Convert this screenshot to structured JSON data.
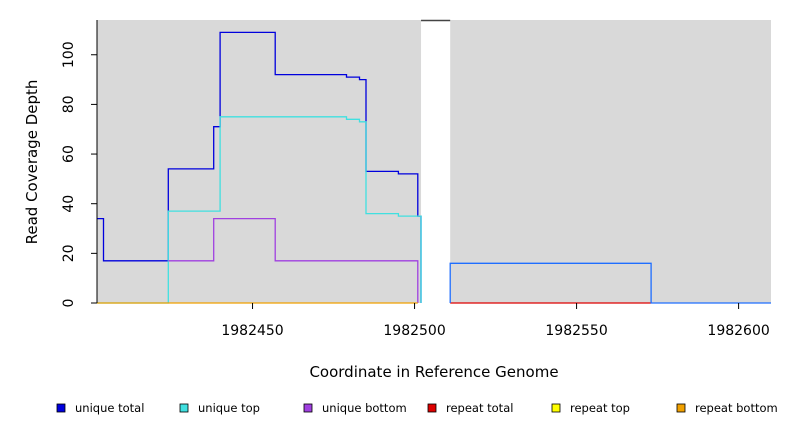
{
  "chart_data": {
    "type": "line",
    "xlabel": "Coordinate in Reference Genome",
    "ylabel": "Read Coverage Depth",
    "xlim": [
      1982402,
      1982610
    ],
    "ylim": [
      0,
      114
    ],
    "x_ticks": [
      {
        "value": 1982450,
        "label": "1982450"
      },
      {
        "value": 1982500,
        "label": "1982500"
      },
      {
        "value": 1982550,
        "label": "1982550"
      },
      {
        "value": 1982600,
        "label": "1982600"
      }
    ],
    "y_ticks": [
      {
        "value": 0,
        "label": "0"
      },
      {
        "value": 20,
        "label": "20"
      },
      {
        "value": 40,
        "label": "40"
      },
      {
        "value": 60,
        "label": "60"
      },
      {
        "value": 80,
        "label": "80"
      },
      {
        "value": 100,
        "label": "100"
      }
    ],
    "gap_region": [
      1982502,
      1982511
    ],
    "legend_position": "bottom",
    "series": [
      {
        "name": "unique total",
        "color": "#0000dd",
        "points": [
          [
            1982402,
            34
          ],
          [
            1982404,
            34
          ],
          [
            1982404,
            17
          ],
          [
            1982424,
            17
          ],
          [
            1982424,
            54
          ],
          [
            1982438,
            54
          ],
          [
            1982438,
            71
          ],
          [
            1982440,
            71
          ],
          [
            1982440,
            109
          ],
          [
            1982457,
            109
          ],
          [
            1982457,
            92
          ],
          [
            1982479,
            92
          ],
          [
            1982479,
            91
          ],
          [
            1982483,
            91
          ],
          [
            1982483,
            90
          ],
          [
            1982485,
            90
          ],
          [
            1982485,
            53
          ],
          [
            1982495,
            53
          ],
          [
            1982495,
            52
          ],
          [
            1982501,
            52
          ],
          [
            1982501,
            35
          ],
          [
            1982502,
            35
          ],
          [
            1982502,
            0
          ]
        ]
      },
      {
        "name": "unique top",
        "color": "#40e0e0",
        "points": [
          [
            1982402,
            0
          ],
          [
            1982424,
            0
          ],
          [
            1982424,
            37
          ],
          [
            1982440,
            37
          ],
          [
            1982440,
            75
          ],
          [
            1982479,
            75
          ],
          [
            1982479,
            74
          ],
          [
            1982483,
            74
          ],
          [
            1982483,
            73
          ],
          [
            1982485,
            73
          ],
          [
            1982485,
            36
          ],
          [
            1982495,
            36
          ],
          [
            1982495,
            35
          ],
          [
            1982502,
            35
          ],
          [
            1982502,
            0
          ]
        ]
      },
      {
        "name": "unique bottom",
        "color": "#a040e0",
        "points": [
          [
            1982424,
            17
          ],
          [
            1982438,
            17
          ],
          [
            1982438,
            34
          ],
          [
            1982457,
            34
          ],
          [
            1982457,
            17
          ],
          [
            1982501,
            17
          ],
          [
            1982501,
            0
          ]
        ]
      },
      {
        "name": "repeat total",
        "color": "#dd0000",
        "points": [
          [
            1982511,
            0
          ],
          [
            1982573,
            0
          ]
        ]
      },
      {
        "name": "repeat top",
        "color": "#ffff00",
        "points": []
      },
      {
        "name": "repeat bottom",
        "color": "#f0a000",
        "points": [
          [
            1982402,
            0
          ],
          [
            1982501,
            0
          ]
        ]
      },
      {
        "color": "#1e6eff",
        "points": [
          [
            1982511,
            0
          ],
          [
            1982511,
            16
          ],
          [
            1982573,
            16
          ],
          [
            1982573,
            0
          ],
          [
            1982610,
            0
          ]
        ]
      }
    ]
  }
}
